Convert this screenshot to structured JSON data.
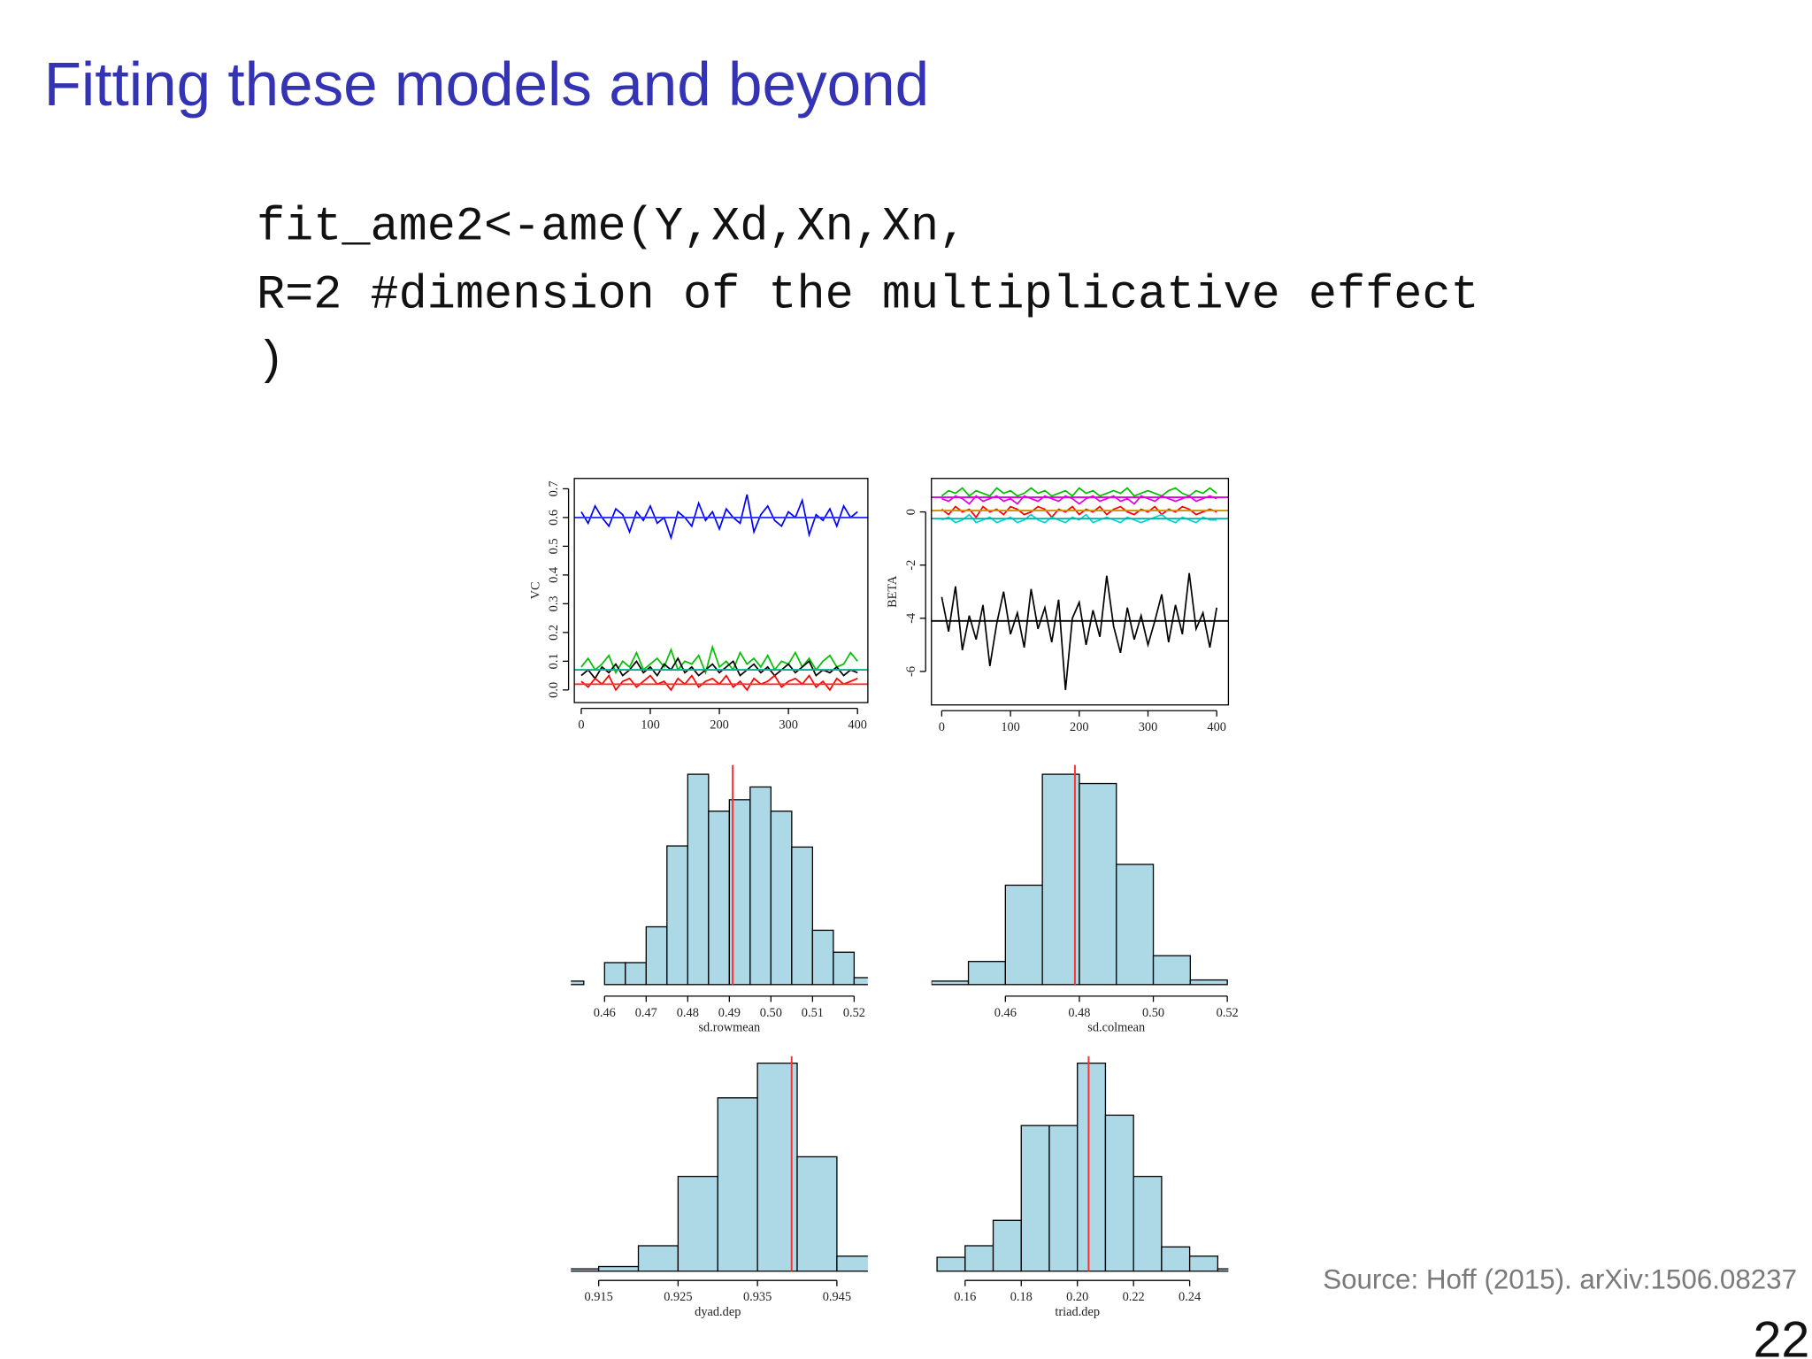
{
  "title": "Fitting these models and beyond",
  "code": [
    "fit_ame2<-ame(Y,Xd,Xn,Xn,",
    "R=2 #dimension of the multiplicative effect",
    ")"
  ],
  "source": "Source: Hoff (2015). arXiv:1506.08237",
  "page_number": "22",
  "chart_data": [
    {
      "type": "line",
      "ylabel": "VC",
      "x": [
        0,
        10,
        20,
        30,
        40,
        50,
        60,
        70,
        80,
        90,
        100,
        110,
        120,
        130,
        140,
        150,
        160,
        170,
        180,
        190,
        200,
        210,
        220,
        230,
        240,
        250,
        260,
        270,
        280,
        290,
        300,
        310,
        320,
        330,
        340,
        350,
        360,
        370,
        380,
        390,
        400
      ],
      "xlim": [
        -10,
        415
      ],
      "xticks": [
        0,
        100,
        200,
        300,
        400
      ],
      "ylim": [
        -0.044,
        0.736
      ],
      "yticks": [
        {
          "value": 0,
          "label": "0.0"
        },
        0.1,
        0.2,
        0.3,
        0.4,
        0.5,
        0.6,
        0.7
      ],
      "series": [
        {
          "color": "#0000ff",
          "values": [
            0.62,
            0.58,
            0.64,
            0.6,
            0.57,
            0.63,
            0.61,
            0.55,
            0.62,
            0.59,
            0.64,
            0.58,
            0.6,
            0.53,
            0.62,
            0.6,
            0.57,
            0.65,
            0.59,
            0.62,
            0.56,
            0.63,
            0.6,
            0.58,
            0.68,
            0.55,
            0.61,
            0.64,
            0.59,
            0.57,
            0.62,
            0.6,
            0.66,
            0.54,
            0.61,
            0.59,
            0.63,
            0.57,
            0.64,
            0.6,
            0.62
          ]
        },
        {
          "color": "#00c000",
          "values": [
            0.08,
            0.11,
            0.07,
            0.09,
            0.12,
            0.06,
            0.1,
            0.08,
            0.13,
            0.07,
            0.09,
            0.11,
            0.08,
            0.14,
            0.07,
            0.1,
            0.09,
            0.12,
            0.06,
            0.15,
            0.08,
            0.1,
            0.07,
            0.13,
            0.09,
            0.11,
            0.08,
            0.12,
            0.07,
            0.1,
            0.09,
            0.13,
            0.08,
            0.11,
            0.07,
            0.1,
            0.12,
            0.08,
            0.09,
            0.13,
            0.1
          ]
        },
        {
          "color": "#000000",
          "values": [
            0.05,
            0.07,
            0.04,
            0.08,
            0.06,
            0.09,
            0.05,
            0.07,
            0.1,
            0.06,
            0.08,
            0.05,
            0.09,
            0.07,
            0.11,
            0.06,
            0.08,
            0.05,
            0.07,
            0.09,
            0.06,
            0.08,
            0.1,
            0.05,
            0.07,
            0.09,
            0.06,
            0.08,
            0.05,
            0.07,
            0.09,
            0.06,
            0.08,
            0.1,
            0.05,
            0.07,
            0.06,
            0.08,
            0.05,
            0.07,
            0.06
          ]
        },
        {
          "color": "#ff0000",
          "values": [
            0.03,
            0.01,
            0.04,
            0.02,
            0.05,
            0.0,
            0.03,
            0.04,
            0.01,
            0.03,
            0.05,
            0.02,
            0.03,
            0.0,
            0.04,
            0.02,
            0.05,
            0.01,
            0.03,
            0.04,
            0.02,
            0.05,
            0.01,
            0.03,
            0.0,
            0.04,
            0.02,
            0.03,
            0.05,
            0.01,
            0.03,
            0.04,
            0.02,
            0.05,
            0.01,
            0.03,
            0.0,
            0.04,
            0.02,
            0.03,
            0.04
          ]
        }
      ],
      "hlines": [
        {
          "value": 0.6,
          "color": "#3030ff"
        },
        {
          "value": 0.07,
          "color": "#00b090"
        },
        {
          "value": 0.02,
          "color": "#ff3030"
        }
      ]
    },
    {
      "type": "line",
      "ylabel": "BETA",
      "x": [
        0,
        10,
        20,
        30,
        40,
        50,
        60,
        70,
        80,
        90,
        100,
        110,
        120,
        130,
        140,
        150,
        160,
        170,
        180,
        190,
        200,
        210,
        220,
        230,
        240,
        250,
        260,
        270,
        280,
        290,
        300,
        310,
        320,
        330,
        340,
        350,
        360,
        370,
        380,
        390,
        400
      ],
      "xlim": [
        -15,
        417
      ],
      "xticks": [
        0,
        100,
        200,
        300,
        400
      ],
      "ylim": [
        -7.26,
        1.26
      ],
      "yticks": [
        -6,
        -4,
        -2,
        0
      ],
      "series": [
        {
          "color": "#000000",
          "values": [
            -3.2,
            -4.5,
            -2.8,
            -5.2,
            -3.9,
            -4.8,
            -3.5,
            -5.8,
            -4.2,
            -3.0,
            -4.6,
            -3.8,
            -5.1,
            -2.9,
            -4.4,
            -3.6,
            -4.9,
            -3.3,
            -6.7,
            -4.0,
            -3.4,
            -5.0,
            -3.7,
            -4.7,
            -2.4,
            -4.3,
            -5.3,
            -3.6,
            -4.8,
            -3.9,
            -5.0,
            -4.1,
            -3.1,
            -4.9,
            -3.5,
            -4.6,
            -2.3,
            -4.4,
            -3.8,
            -5.1,
            -3.6
          ]
        },
        {
          "color": "#00c000",
          "values": [
            0.6,
            0.8,
            0.7,
            0.9,
            0.6,
            0.8,
            0.7,
            0.6,
            0.9,
            0.7,
            0.8,
            0.6,
            0.7,
            0.9,
            0.7,
            0.8,
            0.6,
            0.7,
            0.8,
            0.6,
            0.9,
            0.7,
            0.8,
            0.6,
            0.7,
            0.8,
            0.7,
            0.9,
            0.6,
            0.7,
            0.8,
            0.7,
            0.6,
            0.8,
            0.9,
            0.7,
            0.6,
            0.8,
            0.7,
            0.9,
            0.7
          ]
        },
        {
          "color": "#e000e0",
          "values": [
            0.5,
            0.4,
            0.6,
            0.5,
            0.3,
            0.6,
            0.4,
            0.5,
            0.6,
            0.4,
            0.5,
            0.3,
            0.6,
            0.5,
            0.4,
            0.6,
            0.5,
            0.4,
            0.6,
            0.5,
            0.3,
            0.5,
            0.6,
            0.4,
            0.5,
            0.6,
            0.4,
            0.5,
            0.3,
            0.6,
            0.5,
            0.4,
            0.6,
            0.5,
            0.4,
            0.5,
            0.6,
            0.4,
            0.5,
            0.6,
            0.5
          ]
        },
        {
          "color": "#ff0000",
          "values": [
            0.1,
            -0.1,
            0.2,
            0.0,
            0.1,
            -0.2,
            0.2,
            0.0,
            0.1,
            -0.1,
            0.2,
            0.1,
            -0.1,
            0.0,
            0.2,
            0.1,
            -0.2,
            0.1,
            0.0,
            0.2,
            -0.1,
            0.1,
            0.0,
            0.2,
            -0.1,
            0.1,
            0.2,
            0.0,
            -0.1,
            0.1,
            0.0,
            0.2,
            -0.1,
            0.1,
            0.0,
            0.2,
            0.1,
            -0.1,
            0.0,
            0.1,
            0.0
          ]
        },
        {
          "color": "#00d0d0",
          "values": [
            -0.3,
            -0.2,
            -0.4,
            -0.3,
            -0.1,
            -0.4,
            -0.3,
            -0.2,
            -0.4,
            -0.3,
            -0.2,
            -0.4,
            -0.3,
            -0.1,
            -0.3,
            -0.4,
            -0.2,
            -0.3,
            -0.4,
            -0.2,
            -0.3,
            -0.1,
            -0.4,
            -0.3,
            -0.2,
            -0.3,
            -0.4,
            -0.2,
            -0.3,
            -0.4,
            -0.3,
            -0.2,
            -0.1,
            -0.3,
            -0.4,
            -0.2,
            -0.3,
            -0.4,
            -0.2,
            -0.3,
            -0.3
          ]
        }
      ],
      "hlines": [
        {
          "value": -4.1,
          "color": "#000000"
        },
        {
          "value": 0.55,
          "color": "#e000e0"
        },
        {
          "value": 0.05,
          "color": "#d09000"
        },
        {
          "value": -0.25,
          "color": "#00b0b0"
        }
      ]
    },
    {
      "type": "histogram",
      "xlabel": "sd.rowmean",
      "bins": [
        0.45,
        0.455,
        0.46,
        0.465,
        0.47,
        0.475,
        0.48,
        0.485,
        0.49,
        0.495,
        0.5,
        0.505,
        0.51,
        0.515,
        0.52,
        0.525
      ],
      "counts": [
        3,
        0,
        19,
        19,
        50,
        120,
        182,
        150,
        160,
        171,
        150,
        119,
        47,
        28,
        6
      ],
      "xlim": [
        0.4519,
        0.5233
      ],
      "ylim": [
        0,
        200
      ],
      "xticks": [
        0.46,
        0.47,
        0.48,
        0.49,
        {
          "value": 0.5,
          "label": "0.50"
        },
        0.51,
        0.52
      ],
      "color": "#add8e6",
      "vline": {
        "value": 0.4908,
        "color": "#ff3030"
      }
    },
    {
      "type": "histogram",
      "xlabel": "sd.colmean",
      "bins": [
        0.44,
        0.45,
        0.46,
        0.47,
        0.48,
        0.49,
        0.5,
        0.51,
        0.52
      ],
      "counts": [
        3,
        20,
        86,
        182,
        174,
        104,
        25,
        4
      ],
      "xlim": [
        0.44,
        0.5203
      ],
      "ylim": [
        0,
        200
      ],
      "xticks": [
        0.46,
        0.48,
        {
          "value": 0.5,
          "label": "0.50"
        },
        0.52
      ],
      "color": "#add8e6",
      "vline": {
        "value": 0.4788,
        "color": "#ff3030"
      }
    },
    {
      "type": "histogram",
      "xlabel": "dyad.dep",
      "bins": [
        0.91,
        0.915,
        0.92,
        0.925,
        0.93,
        0.935,
        0.94,
        0.945,
        0.95
      ],
      "counts": [
        2,
        4,
        22,
        82,
        150,
        180,
        99,
        13
      ],
      "xlim": [
        0.9115,
        0.9489
      ],
      "ylim": [
        0,
        200
      ],
      "xticks": [
        0.915,
        0.925,
        0.935,
        0.945
      ],
      "color": "#add8e6",
      "vline": {
        "value": 0.9393,
        "color": "#ff3030"
      }
    },
    {
      "type": "histogram",
      "xlabel": "triad.dep",
      "bins": [
        0.15,
        0.16,
        0.17,
        0.18,
        0.19,
        0.2,
        0.21,
        0.22,
        0.23,
        0.24,
        0.25,
        0.26
      ],
      "counts": [
        12,
        22,
        44,
        126,
        126,
        180,
        135,
        82,
        21,
        13,
        2
      ],
      "xlim": [
        0.148,
        0.2538
      ],
      "ylim": [
        0,
        200
      ],
      "xticks": [
        0.16,
        0.18,
        {
          "value": 0.2,
          "label": "0.20"
        },
        0.22,
        0.24
      ],
      "color": "#add8e6",
      "vline": {
        "value": 0.204,
        "color": "#ff3030"
      }
    }
  ]
}
